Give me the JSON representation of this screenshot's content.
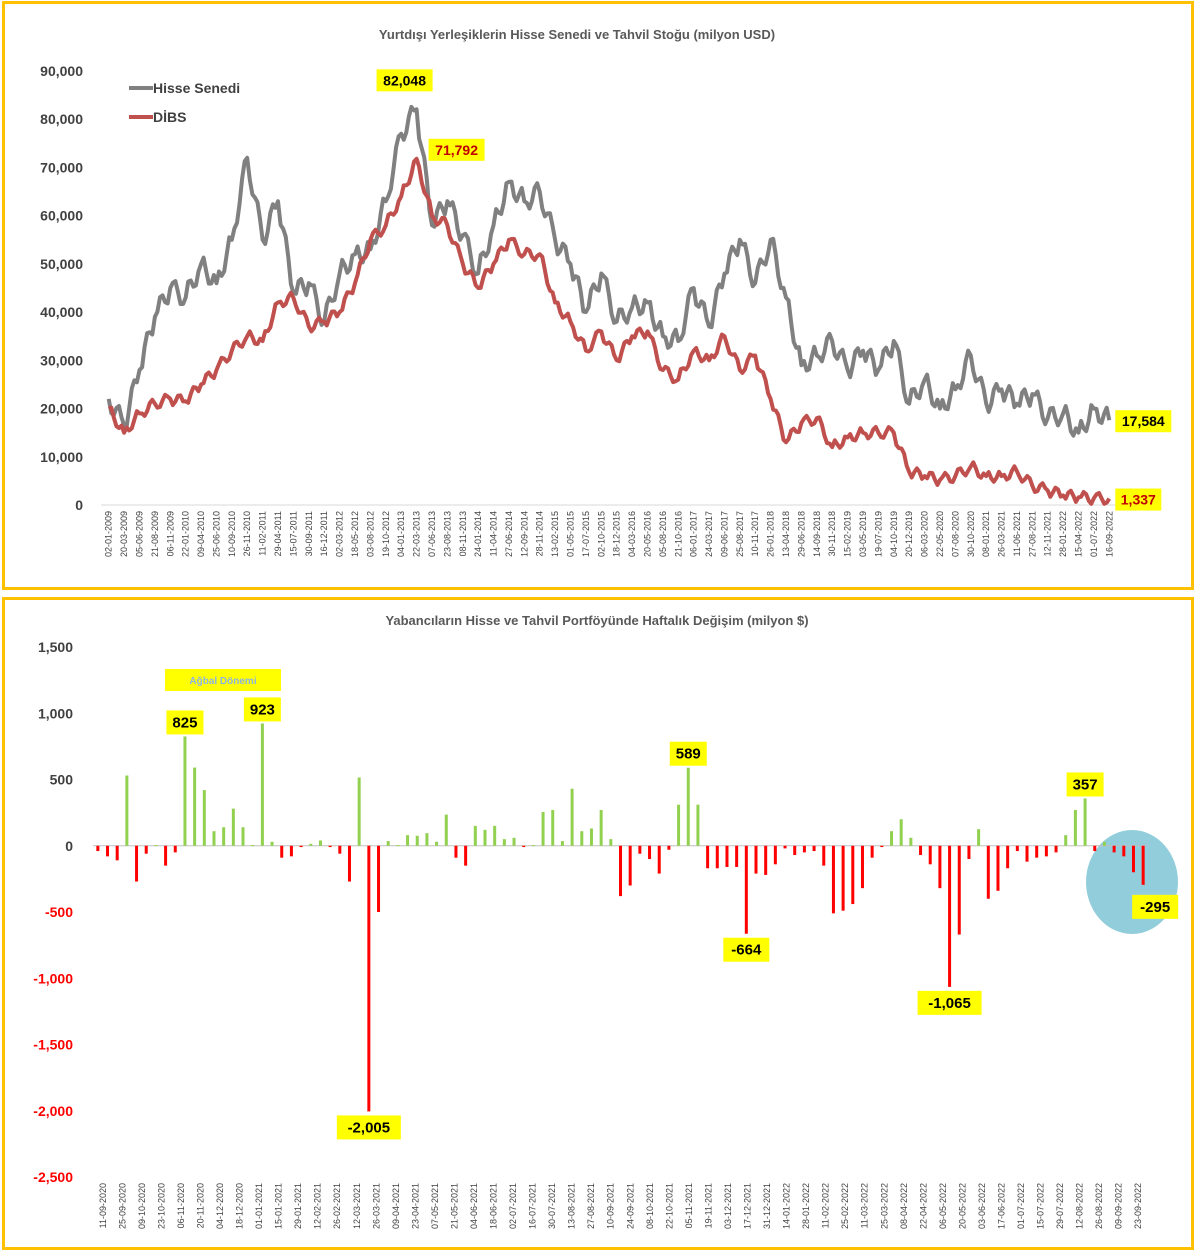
{
  "chart_data": [
    {
      "type": "line",
      "title": "Yurtdışı Yerleşiklerin Hisse Senedi ve Tahvil Stoğu (milyon USD)",
      "ylim": [
        0,
        90000
      ],
      "yticks": [
        "0",
        "10,000",
        "20,000",
        "30,000",
        "40,000",
        "50,000",
        "60,000",
        "70,000",
        "80,000",
        "90,000"
      ],
      "grid": false,
      "legend_position": "top-left",
      "x_tick_labels": [
        "02-01-2009",
        "20-03-2009",
        "05-06-2009",
        "21-08-2009",
        "06-11-2009",
        "22-01-2010",
        "09-04-2010",
        "25-06-2010",
        "10-09-2010",
        "26-11-2010",
        "11-02-2011",
        "29-04-2011",
        "15-07-2011",
        "30-09-2011",
        "16-12-2011",
        "02-03-2012",
        "18-05-2012",
        "03-08-2012",
        "19-10-2012",
        "04-01-2013",
        "22-03-2013",
        "07-06-2013",
        "23-08-2013",
        "08-11-2013",
        "24-01-2014",
        "11-04-2014",
        "27-06-2014",
        "12-09-2014",
        "28-11-2014",
        "13-02-2015",
        "01-05-2015",
        "17-07-2015",
        "02-10-2015",
        "18-12-2015",
        "04-03-2016",
        "20-05-2016",
        "05-08-2016",
        "21-10-2016",
        "06-01-2017",
        "24-03-2017",
        "09-06-2017",
        "25-08-2017",
        "10-11-2017",
        "26-01-2018",
        "13-04-2018",
        "29-06-2018",
        "14-09-2018",
        "30-11-2018",
        "15-02-2019",
        "03-05-2019",
        "19-07-2019",
        "04-10-2019",
        "20-12-2019",
        "06-03-2020",
        "22-05-2020",
        "07-08-2020",
        "30-10-2020",
        "08-01-2021",
        "26-03-2021",
        "11-06-2021",
        "27-08-2021",
        "12-11-2021",
        "28-01-2022",
        "15-04-2022",
        "01-07-2022",
        "16-09-2022"
      ],
      "series": [
        {
          "name": "Hisse Senedi",
          "color": "#808080",
          "values": [
            22000,
            16500,
            28000,
            39000,
            45000,
            43000,
            50000,
            46000,
            55000,
            72000,
            55000,
            63000,
            44000,
            46000,
            38000,
            48000,
            52000,
            53000,
            63000,
            77000,
            82048,
            58000,
            63000,
            56000,
            48000,
            58000,
            67000,
            63000,
            65000,
            55000,
            50000,
            40000,
            48000,
            38000,
            41000,
            42000,
            35000,
            34000,
            45000,
            37000,
            48000,
            55000,
            46000,
            55000,
            43000,
            29000,
            31000,
            34000,
            28000,
            32000,
            28000,
            34000,
            21000,
            26000,
            20000,
            24000,
            31000,
            21000,
            24000,
            21000,
            23000,
            18000,
            19000,
            15000,
            20000,
            17584
          ]
        },
        {
          "name": "DİBS",
          "color": "#C0504D",
          "values": [
            20000,
            15000,
            19000,
            21000,
            22000,
            21500,
            25000,
            28000,
            32000,
            35000,
            34000,
            42000,
            43000,
            37000,
            38000,
            40000,
            46000,
            55000,
            58000,
            64000,
            71792,
            60000,
            58000,
            50000,
            45000,
            50000,
            55000,
            52000,
            52000,
            42000,
            38000,
            32000,
            36000,
            30000,
            35000,
            36000,
            28000,
            26000,
            32000,
            30000,
            35000,
            28000,
            31000,
            22000,
            13000,
            17000,
            18000,
            12000,
            14000,
            15000,
            15000,
            15000,
            6800,
            6000,
            5200,
            6000,
            8000,
            6000,
            6000,
            7000,
            4000,
            3000,
            2000,
            1600,
            1400,
            1337
          ]
        }
      ],
      "callouts": [
        {
          "label": "82,048",
          "series": "Hisse Senedi",
          "x": "08-03-2013",
          "y": 82048
        },
        {
          "label": "71,792",
          "series": "DİBS",
          "x": "22-03-2013",
          "y": 71792
        },
        {
          "label": "17,584",
          "series": "Hisse Senedi",
          "x": "16-09-2022",
          "y": 17584
        },
        {
          "label": "1,337",
          "series": "DİBS",
          "x": "16-09-2022",
          "y": 1337
        }
      ]
    },
    {
      "type": "bar",
      "title": "Yabancıların Hisse ve Tahvil Portföyünde Haftalık Değişim (milyon $)",
      "ylim": [
        -2500,
        1500
      ],
      "yticks": [
        "-2,500",
        "-2,000",
        "-1,500",
        "-1,000",
        "-500",
        "0",
        "500",
        "1,000",
        "1,500"
      ],
      "grid": false,
      "positive_color": "#92D050",
      "negative_color": "#FF0000",
      "x_tick_labels": [
        "11-09-2020",
        "25-09-2020",
        "09-10-2020",
        "23-10-2020",
        "06-11-2020",
        "20-11-2020",
        "04-12-2020",
        "18-12-2020",
        "01-01-2021",
        "15-01-2021",
        "29-01-2021",
        "12-02-2021",
        "26-02-2021",
        "12-03-2021",
        "26-03-2021",
        "09-04-2021",
        "23-04-2021",
        "07-05-2021",
        "21-05-2021",
        "04-06-2021",
        "18-06-2021",
        "02-07-2021",
        "16-07-2021",
        "30-07-2021",
        "13-08-2021",
        "27-08-2021",
        "10-09-2021",
        "24-09-2021",
        "08-10-2021",
        "22-10-2021",
        "05-11-2021",
        "19-11-2021",
        "03-12-2021",
        "17-12-2021",
        "31-12-2021",
        "14-01-2022",
        "28-01-2022",
        "11-02-2022",
        "25-02-2022",
        "11-03-2022",
        "25-03-2022",
        "08-04-2022",
        "22-04-2022",
        "06-05-2022",
        "20-05-2022",
        "03-06-2022",
        "17-06-2022",
        "01-07-2022",
        "15-07-2022",
        "29-07-2022",
        "12-08-2022",
        "26-08-2022",
        "09-09-2022",
        "23-09-2022"
      ],
      "values": [
        -40,
        -80,
        -110,
        530,
        -270,
        -60,
        5,
        -150,
        -50,
        825,
        590,
        420,
        110,
        140,
        280,
        140,
        5,
        923,
        30,
        -90,
        -80,
        -10,
        15,
        40,
        -10,
        -60,
        -270,
        515,
        -2005,
        -500,
        35,
        5,
        80,
        75,
        95,
        30,
        235,
        -90,
        -150,
        150,
        120,
        150,
        50,
        60,
        -10,
        5,
        255,
        270,
        35,
        430,
        110,
        130,
        270,
        50,
        -380,
        -300,
        -60,
        -100,
        -210,
        -30,
        310,
        589,
        310,
        -170,
        -170,
        -160,
        -160,
        -664,
        -210,
        -220,
        -140,
        -20,
        -70,
        -50,
        -40,
        -150,
        -510,
        -490,
        -440,
        -320,
        -90,
        -10,
        110,
        200,
        60,
        -70,
        -140,
        -320,
        -1065,
        -670,
        -100,
        125,
        -400,
        -340,
        -170,
        -40,
        -120,
        -90,
        -80,
        -50,
        80,
        270,
        357,
        -40,
        30,
        -50,
        -80,
        -200,
        -295
      ],
      "callouts": [
        {
          "label": "825",
          "x": "13-11-2020",
          "y": 825
        },
        {
          "label": "923",
          "x": "08-01-2021",
          "y": 923
        },
        {
          "label": "-2,005",
          "x": "26-03-2021",
          "y": -2005
        },
        {
          "label": "589",
          "x": "12-11-2021",
          "y": 589
        },
        {
          "label": "-664",
          "x": "31-12-2021",
          "y": -664
        },
        {
          "label": "-1,065",
          "x": "20-05-2022",
          "y": -1065
        },
        {
          "label": "357",
          "x": "19-08-2022",
          "y": 357
        },
        {
          "label": "-295",
          "x": "23-09-2022",
          "y": -295
        }
      ],
      "annotation_box": "Ağbal Dönemi",
      "highlight_circle": "last weeks"
    }
  ]
}
